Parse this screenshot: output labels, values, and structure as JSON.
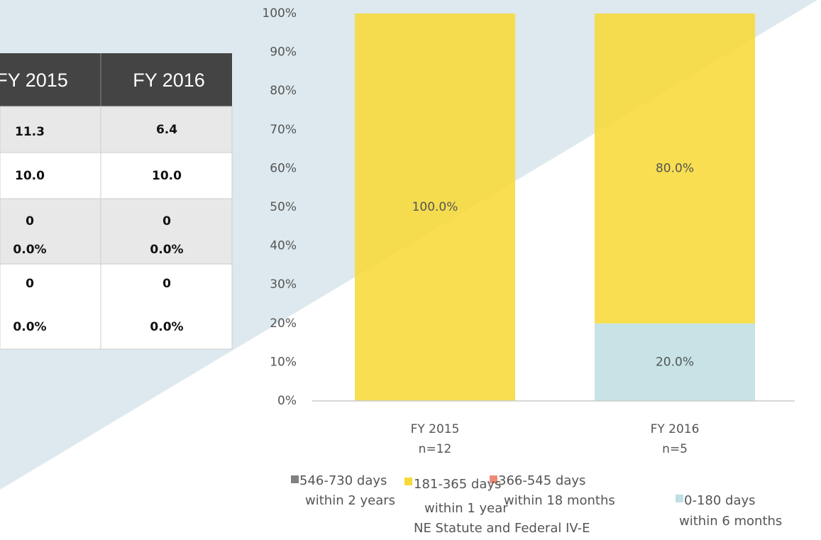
{
  "table": {
    "header": [
      "FY 2015",
      "FY 2016"
    ],
    "rows": [
      [
        [
          "11.3"
        ],
        [
          "6.4"
        ]
      ],
      [
        [
          "10.0"
        ],
        [
          "10.0"
        ]
      ],
      [
        [
          "0",
          "0.0%"
        ],
        [
          "0",
          "0.0%"
        ]
      ],
      [
        [
          "0",
          "0.0%"
        ],
        [
          "0",
          "0.0%"
        ]
      ]
    ]
  },
  "chart_data": {
    "type": "stacked_bar",
    "categories": [
      "FY 2015",
      "FY 2016"
    ],
    "category_notes": [
      "n=12",
      "n=5"
    ],
    "ylim": [
      0,
      100
    ],
    "yticks": [
      {
        "value": 0,
        "label": "0%"
      },
      {
        "value": 10,
        "label": "10%"
      },
      {
        "value": 20,
        "label": "20%"
      },
      {
        "value": 30,
        "label": "30%"
      },
      {
        "value": 40,
        "label": "40%"
      },
      {
        "value": 50,
        "label": "50%"
      },
      {
        "value": 60,
        "label": "60%"
      },
      {
        "value": 70,
        "label": "70%"
      },
      {
        "value": 80,
        "label": "80%"
      },
      {
        "value": 90,
        "label": "90%"
      },
      {
        "value": 100,
        "label": "100%"
      }
    ],
    "series": [
      {
        "name": "546-730 days",
        "description": [
          "within 2 years"
        ],
        "color": "#808080",
        "values": [
          0,
          0
        ]
      },
      {
        "name": "366-545 days",
        "description": [
          "within 18 months"
        ],
        "color": "#ef8a78",
        "values": [
          0,
          0
        ]
      },
      {
        "name": "181-365 days",
        "description": [
          "within 1 year",
          "NE Statute and Federal IV-E"
        ],
        "color": "#f7da38",
        "values": [
          100,
          80
        ],
        "value_labels": [
          "100.0%",
          "80.0%"
        ]
      },
      {
        "name": "0-180 days",
        "description": [
          "within 6 months"
        ],
        "color": "#bfdfe2",
        "values": [
          0,
          20
        ],
        "value_labels": [
          null,
          "20.0%"
        ]
      }
    ]
  }
}
